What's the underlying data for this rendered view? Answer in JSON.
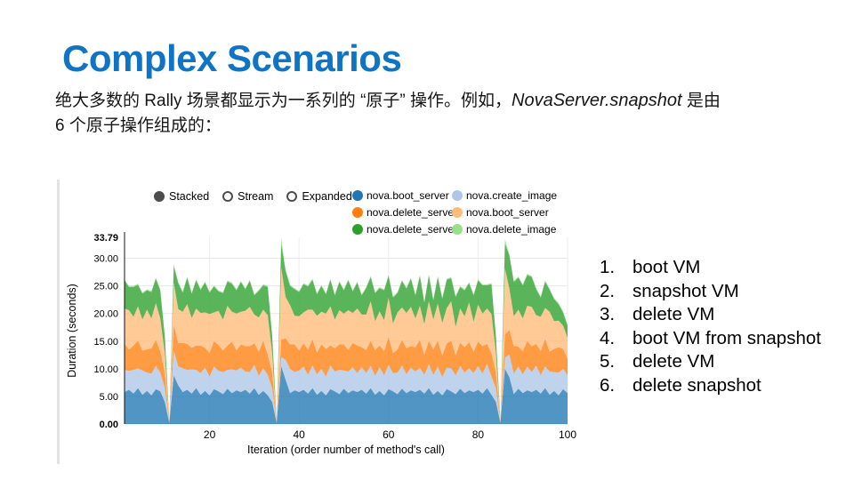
{
  "slide": {
    "title": "Complex Scenarios",
    "title_color": "#0f74c4",
    "paragraph": {
      "line1_pre": "绝大多数的 Rally 场景都显示为一系列的 “原子” 操作。例如，",
      "line1_em": "NovaServer.snapshot",
      "line1_post": " 是由",
      "line2": "6 个原子操作组成的："
    },
    "steps": [
      "boot VM",
      "snapshot VM",
      "delete VM",
      "boot VM from snapshot",
      "delete VM",
      "delete snapshot"
    ]
  },
  "chart_controls": {
    "modes": [
      {
        "label": "Stacked",
        "selected": true
      },
      {
        "label": "Stream",
        "selected": false
      },
      {
        "label": "Expanded",
        "selected": false
      }
    ]
  },
  "chart_data": {
    "type": "area",
    "stacked": true,
    "title": "",
    "xlabel": "Iteration (order number of method's call)",
    "ylabel": "Duration (seconds)",
    "xlim": [
      1,
      100
    ],
    "ylim": [
      0,
      33.79
    ],
    "y_ticks": [
      0,
      5,
      10,
      15,
      20,
      25,
      30,
      33.79
    ],
    "y_tick_labels": [
      "0.00",
      "5.00",
      "10.00",
      "15.00",
      "20.00",
      "25.00",
      "30.00",
      "33.79"
    ],
    "x_ticks": [
      20,
      40,
      60,
      80,
      100
    ],
    "grid": true,
    "legend_position": "top-right",
    "area_opacity": 0.78,
    "x": [
      1,
      2,
      3,
      4,
      5,
      6,
      7,
      8,
      9,
      10,
      11,
      12,
      13,
      14,
      15,
      16,
      17,
      18,
      19,
      20,
      21,
      22,
      23,
      24,
      25,
      26,
      27,
      28,
      29,
      30,
      31,
      32,
      33,
      34,
      35,
      36,
      37,
      38,
      39,
      40,
      41,
      42,
      43,
      44,
      45,
      46,
      47,
      48,
      49,
      50,
      51,
      52,
      53,
      54,
      55,
      56,
      57,
      58,
      59,
      60,
      61,
      62,
      63,
      64,
      65,
      66,
      67,
      68,
      69,
      70,
      71,
      72,
      73,
      74,
      75,
      76,
      77,
      78,
      79,
      80,
      81,
      82,
      83,
      84,
      85,
      86,
      87,
      88,
      89,
      90,
      91,
      92,
      93,
      94,
      95,
      96,
      97,
      98,
      99,
      100
    ],
    "series": [
      {
        "name": "nova.boot_server",
        "color": "#1f77b4",
        "values": [
          5.8,
          6.2,
          5.5,
          6.5,
          5.3,
          6.0,
          5.2,
          6.3,
          5.9,
          4.0,
          0.2,
          8.8,
          7.0,
          5.8,
          6.2,
          5.5,
          6.5,
          5.3,
          6.0,
          5.2,
          6.3,
          5.9,
          5.4,
          6.4,
          5.6,
          6.1,
          5.8,
          6.2,
          5.5,
          6.5,
          5.3,
          6.0,
          5.2,
          4.0,
          0.2,
          10.5,
          8.0,
          5.6,
          6.1,
          5.8,
          6.2,
          5.5,
          6.5,
          5.3,
          6.0,
          5.2,
          6.3,
          5.9,
          5.4,
          6.4,
          5.6,
          6.1,
          5.8,
          6.2,
          5.5,
          6.5,
          5.3,
          6.0,
          5.2,
          6.3,
          5.9,
          5.4,
          6.4,
          5.6,
          6.1,
          5.8,
          6.2,
          5.5,
          6.5,
          5.3,
          6.0,
          5.2,
          6.3,
          5.9,
          5.4,
          6.4,
          5.6,
          6.1,
          5.8,
          6.2,
          5.5,
          6.5,
          5.3,
          4.0,
          0.2,
          10.0,
          8.5,
          5.4,
          6.4,
          5.6,
          6.1,
          5.8,
          6.2,
          5.5,
          6.5,
          5.3,
          6.0,
          5.2,
          6.3,
          5.6
        ]
      },
      {
        "name": "nova.create_image",
        "color": "#aec7e8",
        "values": [
          4.0,
          3.4,
          4.3,
          3.6,
          4.4,
          3.3,
          3.9,
          4.2,
          3.4,
          2.5,
          0.1,
          4.6,
          3.4,
          4.3,
          3.6,
          4.4,
          3.3,
          3.9,
          4.2,
          3.4,
          4.1,
          3.7,
          4.0,
          3.4,
          4.3,
          3.6,
          4.4,
          3.3,
          3.9,
          4.2,
          3.4,
          4.1,
          3.7,
          2.5,
          0.1,
          1.6,
          3.6,
          4.4,
          3.3,
          3.9,
          4.2,
          3.4,
          4.1,
          3.7,
          4.0,
          3.4,
          4.3,
          3.6,
          4.4,
          3.3,
          3.9,
          4.2,
          3.4,
          4.1,
          3.7,
          4.0,
          3.4,
          4.3,
          3.6,
          4.4,
          3.3,
          3.9,
          4.2,
          3.4,
          4.1,
          3.7,
          4.0,
          3.4,
          4.3,
          3.6,
          4.4,
          3.3,
          3.9,
          4.2,
          3.4,
          4.1,
          3.7,
          4.0,
          3.4,
          4.3,
          3.6,
          4.4,
          3.3,
          2.5,
          0.1,
          2.0,
          4.1,
          3.7,
          4.0,
          3.4,
          4.3,
          3.6,
          4.4,
          3.3,
          3.9,
          4.2,
          3.4,
          4.1,
          3.7,
          3.2
        ]
      },
      {
        "name": "nova.delete_server",
        "color": "#ff7f0e",
        "values": [
          4.7,
          3.9,
          4.4,
          5.0,
          3.6,
          4.2,
          4.6,
          4.7,
          3.9,
          2.8,
          0.1,
          4.6,
          4.2,
          4.6,
          4.7,
          3.9,
          4.4,
          5.0,
          3.6,
          4.2,
          4.6,
          4.7,
          3.9,
          4.4,
          5.0,
          3.6,
          4.2,
          4.6,
          4.7,
          3.9,
          4.4,
          5.0,
          3.6,
          2.8,
          0.1,
          3.2,
          3.9,
          4.4,
          5.0,
          3.6,
          4.2,
          4.6,
          4.7,
          3.9,
          4.4,
          5.0,
          3.6,
          4.2,
          4.6,
          4.7,
          3.9,
          4.4,
          5.0,
          3.6,
          4.2,
          4.6,
          4.7,
          3.9,
          4.4,
          5.0,
          3.6,
          4.2,
          4.6,
          4.7,
          3.9,
          4.4,
          5.0,
          3.6,
          4.2,
          4.6,
          4.7,
          3.9,
          4.4,
          5.0,
          3.6,
          4.2,
          4.6,
          4.7,
          3.9,
          4.4,
          5.0,
          3.6,
          4.2,
          2.8,
          0.1,
          4.2,
          4.4,
          5.0,
          3.6,
          4.2,
          4.6,
          4.7,
          3.9,
          4.4,
          5.0,
          3.6,
          4.2,
          4.6,
          3.6,
          3.0
        ]
      },
      {
        "name": "nova.boot_server",
        "color": "#ffbb78",
        "values": [
          6.4,
          7.1,
          5.2,
          6.2,
          5.6,
          7.2,
          5.4,
          6.7,
          5.9,
          3.5,
          0.1,
          7.6,
          6.2,
          5.6,
          7.2,
          5.4,
          6.7,
          5.9,
          6.4,
          7.1,
          5.2,
          6.2,
          5.6,
          7.2,
          5.4,
          6.7,
          5.9,
          6.4,
          7.1,
          5.2,
          6.2,
          5.6,
          7.2,
          3.5,
          0.1,
          13.0,
          7.5,
          7.1,
          5.2,
          6.2,
          5.6,
          7.2,
          5.4,
          6.7,
          5.9,
          6.4,
          7.1,
          5.2,
          6.2,
          5.6,
          7.2,
          5.4,
          6.7,
          5.9,
          6.4,
          7.1,
          5.2,
          6.2,
          5.6,
          7.2,
          5.4,
          6.7,
          5.9,
          6.4,
          7.1,
          5.2,
          6.2,
          5.6,
          7.2,
          5.4,
          6.7,
          5.9,
          6.4,
          7.1,
          5.2,
          6.2,
          5.6,
          7.2,
          5.4,
          6.7,
          5.9,
          6.4,
          7.1,
          3.5,
          0.1,
          12.0,
          7.5,
          5.4,
          6.7,
          5.9,
          6.4,
          7.1,
          5.2,
          6.2,
          5.6,
          7.2,
          5.0,
          4.8,
          4.2,
          3.8
        ]
      },
      {
        "name": "nova.delete_server",
        "color": "#2ca02c",
        "values": [
          5.1,
          4.2,
          5.4,
          3.9,
          4.7,
          3.5,
          4.8,
          4.4,
          5.1,
          3.0,
          0.1,
          3.0,
          4.7,
          3.5,
          4.8,
          4.4,
          5.1,
          4.2,
          5.4,
          3.9,
          4.7,
          3.5,
          4.8,
          4.4,
          5.1,
          4.2,
          5.4,
          3.9,
          4.7,
          3.5,
          4.8,
          4.4,
          5.1,
          3.0,
          0.1,
          4.3,
          4.7,
          3.5,
          4.8,
          4.4,
          5.1,
          4.2,
          5.4,
          3.9,
          4.7,
          3.5,
          4.8,
          4.4,
          5.1,
          4.2,
          5.4,
          3.9,
          4.7,
          3.5,
          4.8,
          4.4,
          5.1,
          4.2,
          5.4,
          3.9,
          4.7,
          3.5,
          4.8,
          4.4,
          5.1,
          4.2,
          5.4,
          3.9,
          4.7,
          3.5,
          4.8,
          4.4,
          5.1,
          4.2,
          5.4,
          3.9,
          4.7,
          3.5,
          4.8,
          4.4,
          5.1,
          4.2,
          5.4,
          3.0,
          0.1,
          4.5,
          6.0,
          6.2,
          5.8,
          6.0,
          5.6,
          5.4,
          4.7,
          3.5,
          4.8,
          4.0,
          4.0,
          3.0,
          2.4,
          2.2
        ]
      },
      {
        "name": "nova.delete_image",
        "color": "#98df8a",
        "values": [
          0.2,
          0.2,
          0.2,
          0.2,
          0.2,
          0.2,
          0.2,
          0.2,
          0.2,
          0.2,
          0.05,
          0.4,
          0.2,
          0.2,
          0.2,
          0.2,
          0.2,
          0.2,
          0.2,
          0.2,
          0.2,
          0.2,
          0.2,
          0.2,
          0.2,
          0.2,
          0.2,
          0.2,
          0.2,
          0.2,
          0.2,
          0.2,
          0.2,
          0.2,
          0.05,
          1.1,
          0.2,
          0.2,
          0.2,
          0.2,
          0.2,
          0.2,
          0.2,
          0.2,
          0.2,
          0.2,
          0.2,
          0.2,
          0.2,
          0.2,
          0.2,
          0.2,
          0.2,
          0.2,
          0.2,
          0.2,
          0.2,
          0.2,
          0.2,
          0.2,
          0.2,
          0.2,
          0.2,
          0.2,
          0.2,
          0.2,
          0.2,
          0.2,
          0.2,
          0.2,
          0.2,
          0.2,
          0.2,
          0.2,
          0.2,
          0.2,
          0.2,
          0.2,
          0.2,
          0.2,
          0.2,
          0.2,
          0.2,
          0.2,
          0.05,
          0.8,
          0.2,
          0.2,
          0.2,
          0.2,
          0.2,
          0.2,
          0.2,
          0.2,
          0.2,
          0.2,
          0.2,
          0.2,
          0.2,
          0.2
        ]
      }
    ]
  }
}
